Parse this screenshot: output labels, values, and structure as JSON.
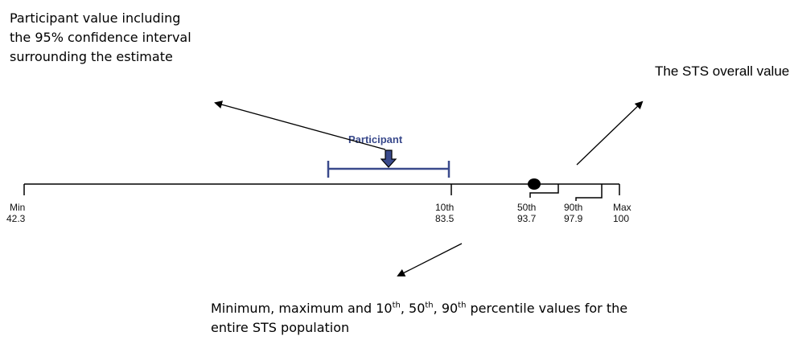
{
  "annotations": {
    "participant_note": "Participant value including the 95% confidence interval surrounding the estimate",
    "sts_note": "The STS overall value",
    "percentile_note": {
      "part1": "Minimum, maximum and 10",
      "sup1": "th",
      "part2": ", 50",
      "sup2": "th",
      "part3": ", 90",
      "sup3": "th",
      "part4": " percentile values for the entire STS population"
    }
  },
  "scale": {
    "ticks": [
      {
        "name": "Min",
        "value": "42.3"
      },
      {
        "name": "10th",
        "value": "83.5"
      },
      {
        "name": "50th",
        "value": "93.7"
      },
      {
        "name": "90th",
        "value": "97.9"
      },
      {
        "name": "Max",
        "value": "100"
      }
    ]
  },
  "participant": {
    "label": "Participant"
  },
  "colors": {
    "participant": "#3a4a8c",
    "line": "#000000"
  }
}
